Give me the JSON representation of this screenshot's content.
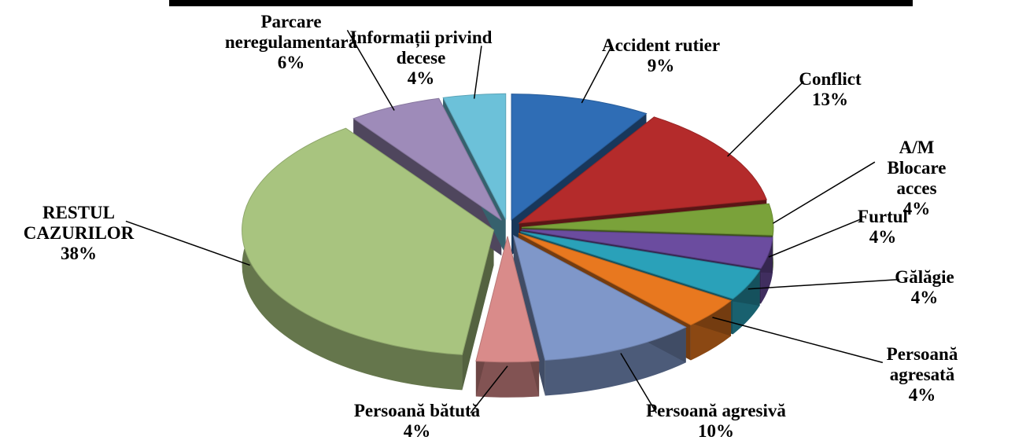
{
  "chart_data": {
    "type": "pie",
    "categories": [
      "Accident rutier",
      "Conflict",
      "A/M Blocare acces",
      "Furtul",
      "Gălăgie",
      "Persoană agresată",
      "Persoană agresivă",
      "Persoană bătută",
      "RESTUL\nCAZURILOR",
      "Parcare\nneregulamentară",
      "Informații privind\ndecese"
    ],
    "values": [
      9,
      13,
      4,
      4,
      4,
      4,
      10,
      4,
      38,
      6,
      4
    ],
    "value_labels": [
      "9%",
      "13%",
      "4%",
      "4%",
      "4%",
      "4%",
      "10%",
      "4%",
      "38%",
      "6%",
      "4%"
    ],
    "colors": [
      "#2f6db5",
      "#b42b2b",
      "#7aa23a",
      "#6b4c9f",
      "#2aa1b9",
      "#e8781f",
      "#7f97c9",
      "#d98b8a",
      "#a8c47f",
      "#9e8bb9",
      "#6cc1d9"
    ]
  }
}
